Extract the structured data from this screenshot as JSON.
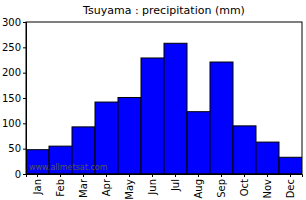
{
  "chart_data": {
    "type": "bar",
    "title": "Tsuyama : precipitation (mm)",
    "categories": [
      "Jan",
      "Feb",
      "Mar",
      "Apr",
      "May",
      "Jun",
      "Jul",
      "Aug",
      "Sep",
      "Oct",
      "Nov",
      "Dec"
    ],
    "values": [
      48,
      55,
      93,
      142,
      151,
      229,
      258,
      123,
      221,
      95,
      63,
      33
    ],
    "color": "#0000ff",
    "ylim": [
      0,
      300
    ],
    "yticks": [
      0,
      50,
      100,
      150,
      200,
      250,
      300
    ],
    "grid": false,
    "annotations": [
      "www.allmetsat.com"
    ]
  }
}
